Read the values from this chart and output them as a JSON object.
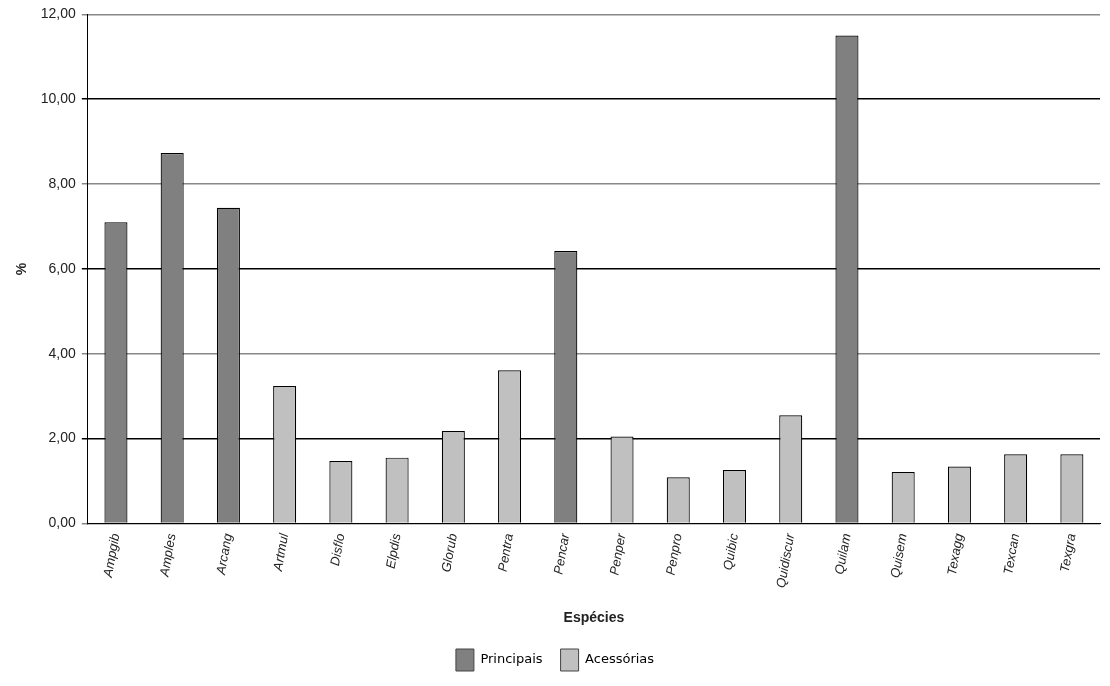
{
  "chart_data": {
    "type": "bar",
    "xlabel": "Espécies",
    "ylabel": "%",
    "categories": [
      "Ampgib",
      "Amples",
      "Arcang",
      "Artmul",
      "Disflo",
      "Elpdis",
      "Glorub",
      "Pentra",
      "Pencar",
      "Penper",
      "Penpro",
      "Quibic",
      "Quidiscur",
      "Quilam",
      "Quisem",
      "Texagg",
      "Texcan",
      "Texgra"
    ],
    "series": [
      {
        "name": "Principais",
        "color": "#808080",
        "values": [
          7.1,
          8.73,
          7.44,
          null,
          null,
          null,
          null,
          null,
          6.42,
          null,
          null,
          null,
          null,
          11.5,
          null,
          null,
          null,
          null
        ]
      },
      {
        "name": "Acessórias",
        "color": "#c0c0c0",
        "values": [
          null,
          null,
          null,
          3.24,
          1.47,
          1.55,
          2.18,
          3.61,
          null,
          2.05,
          1.09,
          1.26,
          2.55,
          null,
          1.21,
          1.34,
          1.63,
          1.63
        ]
      }
    ],
    "ylim": [
      0,
      12
    ],
    "yticks": [
      {
        "value": 0,
        "label": "0,00"
      },
      {
        "value": 2,
        "label": "2,00"
      },
      {
        "value": 4,
        "label": "4,00"
      },
      {
        "value": 6,
        "label": "6,00"
      },
      {
        "value": 8,
        "label": "8,00"
      },
      {
        "value": 10,
        "label": "10,00"
      },
      {
        "value": 12,
        "label": "12,00"
      }
    ],
    "grid": "y",
    "legend": "bottom"
  }
}
